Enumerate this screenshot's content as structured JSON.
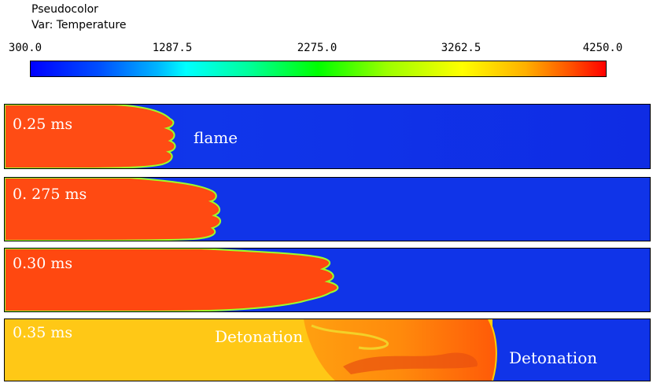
{
  "legend": {
    "title_line1": "Pseudocolor",
    "title_line2": "Var: Temperature",
    "ticks": [
      "300.0",
      "1287.5",
      "2275.0",
      "3262.5",
      "4250.0"
    ],
    "min": 300.0,
    "max": 4250.0,
    "colors": [
      "#0000ff",
      "#00ffff",
      "#00ff00",
      "#ffff00",
      "#ff0000"
    ]
  },
  "panels": [
    {
      "time": "0.25 ms",
      "annotation": "flame"
    },
    {
      "time": "0. 275 ms"
    },
    {
      "time": "0.30 ms"
    },
    {
      "time": "0.35 ms",
      "annotation_left": "Detonation",
      "annotation_right": "Detonation"
    }
  ]
}
